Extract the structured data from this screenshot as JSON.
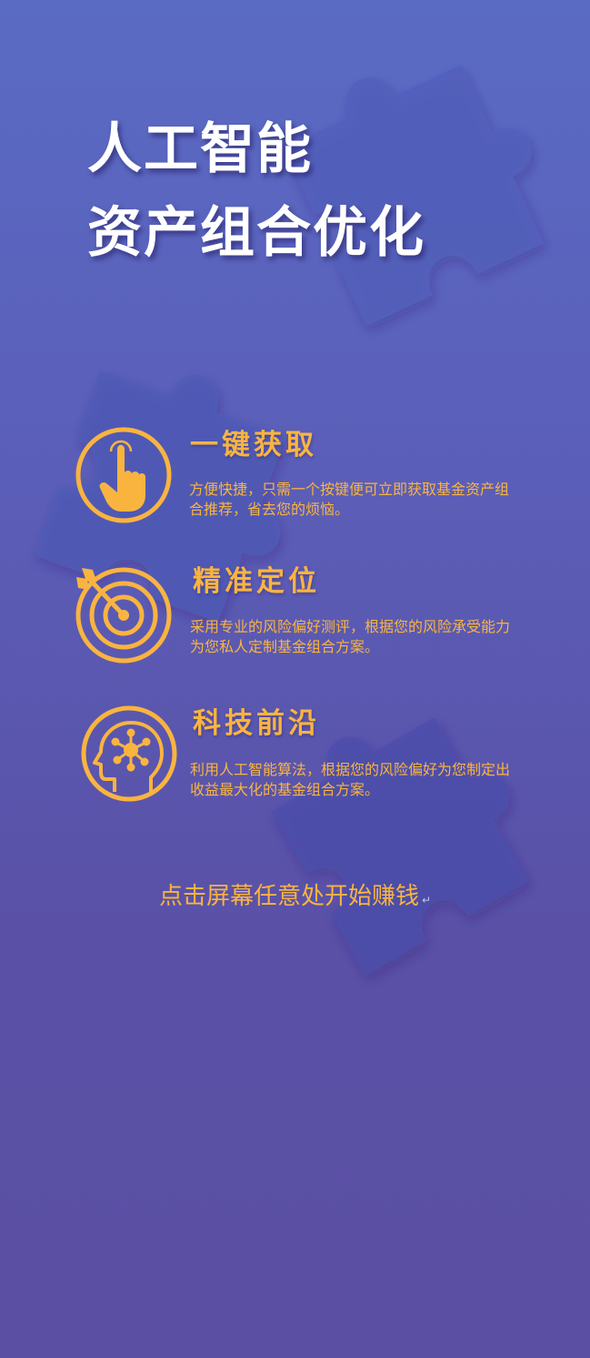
{
  "title": {
    "line1": "人工智能",
    "line2": "资产组合优化"
  },
  "features": [
    {
      "icon": "pointing-hand-icon",
      "title": "一键获取",
      "desc": "方便快捷，只需一个按键便可立即获取基金资产组合推荐，省去您的烦恼。"
    },
    {
      "icon": "target-arrow-icon",
      "title": "精准定位",
      "desc": "采用专业的风险偏好测评，根据您的风险承受能力为您私人定制基金组合方案。"
    },
    {
      "icon": "brain-network-head-icon",
      "title": "科技前沿",
      "desc": "利用人工智能算法，根据您的风险偏好为您制定出收益最大化的基金组合方案。"
    }
  ],
  "cta": {
    "text": "点击屏幕任意处开始赚钱",
    "mark": "↵"
  },
  "colors": {
    "accent": "#f9b440",
    "background_top": "#5a6bc4",
    "background_bottom": "#5a4fa2",
    "title": "#ffffff"
  }
}
